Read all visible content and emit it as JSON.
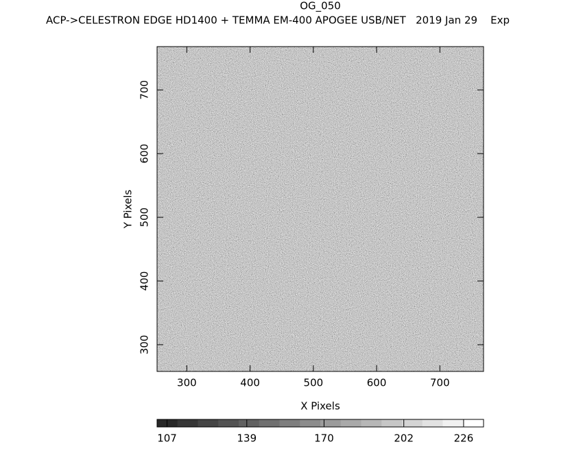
{
  "chart_data": {
    "type": "image",
    "title": "OG_050",
    "subtitle": "ACP->CELESTRON EDGE HD1400 + TEMMA EM-400 APOGEE USB/NET   2019 Jan 29    Exp",
    "x_label": "X Pixels",
    "y_label": "Y Pixels",
    "xlim": [
      253,
      769
    ],
    "xticks": [
      300,
      400,
      500,
      600,
      700
    ],
    "ylim": [
      258,
      768
    ],
    "yticks": [
      300,
      400,
      500,
      600,
      700
    ],
    "colorbar": {
      "lim": [
        103,
        234
      ],
      "ticks": [
        107,
        139,
        170,
        202,
        226
      ]
    }
  }
}
